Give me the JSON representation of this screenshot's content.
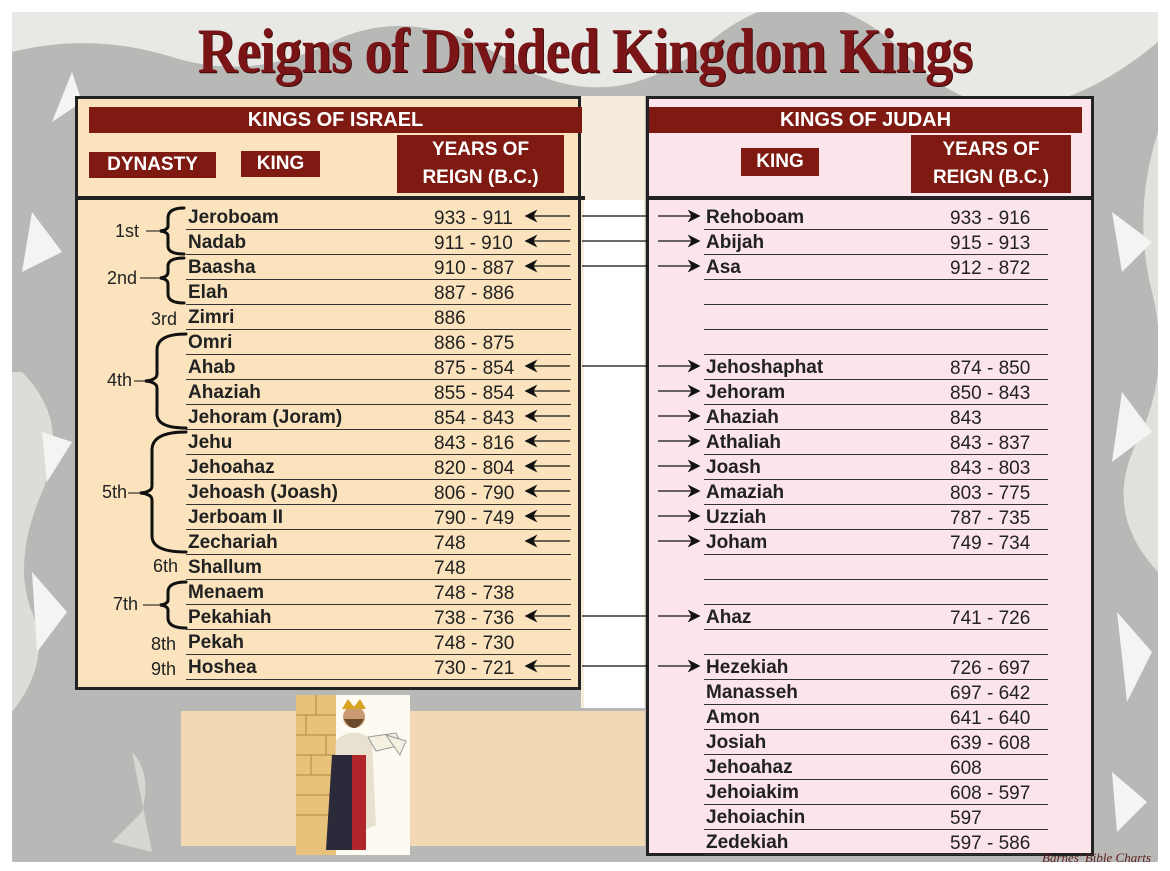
{
  "title": "Reigns of Divided Kingdom Kings",
  "israel": {
    "header": "KINGS OF ISRAEL",
    "col_dynasty": "DYNASTY",
    "col_king": "KING",
    "col_years_1": "YEARS OF",
    "col_years_2": "REIGN (B.C.)",
    "rows": [
      {
        "name": "Jeroboam",
        "years": "933 - 911"
      },
      {
        "name": "Nadab",
        "years": "911 - 910"
      },
      {
        "name": "Baasha",
        "years": "910 - 887"
      },
      {
        "name": "Elah",
        "years": "887 - 886"
      },
      {
        "name": "Zimri",
        "years": "886"
      },
      {
        "name": "Omri",
        "years": "886 - 875"
      },
      {
        "name": "Ahab",
        "years": "875 - 854"
      },
      {
        "name": "Ahaziah",
        "years": "855 - 854"
      },
      {
        "name": "Jehoram  (Joram)",
        "years": "854 - 843"
      },
      {
        "name": "Jehu",
        "years": "843 - 816"
      },
      {
        "name": "Jehoahaz",
        "years": "820 - 804"
      },
      {
        "name": "Jehoash  (Joash)",
        "years": "806 - 790"
      },
      {
        "name": "Jerboam II",
        "years": "790 - 749"
      },
      {
        "name": "Zechariah",
        "years": "748"
      },
      {
        "name": "Shallum",
        "years": "748"
      },
      {
        "name": "Menaem",
        "years": "748 - 738"
      },
      {
        "name": "Pekahiah",
        "years": "738 - 736"
      },
      {
        "name": "Pekah",
        "years": "748 - 730"
      },
      {
        "name": "Hoshea",
        "years": "730 - 721"
      }
    ],
    "dynasties": [
      "1st",
      "2nd",
      "3rd",
      "4th",
      "5th",
      "6th",
      "7th",
      "8th",
      "9th"
    ]
  },
  "judah": {
    "header": "KINGS OF JUDAH",
    "col_king": "KING",
    "col_years_1": "YEARS OF",
    "col_years_2": "REIGN (B.C.)",
    "rows": [
      {
        "name": "Rehoboam",
        "years": "933 - 916"
      },
      {
        "name": "Abijah",
        "years": "915 - 913"
      },
      {
        "name": "Asa",
        "years": "912 - 872"
      },
      {
        "name": "",
        "years": ""
      },
      {
        "name": "",
        "years": ""
      },
      {
        "name": "",
        "years": ""
      },
      {
        "name": "Jehoshaphat",
        "years": "874 - 850"
      },
      {
        "name": "Jehoram",
        "years": "850 - 843"
      },
      {
        "name": "Ahaziah",
        "years": "843"
      },
      {
        "name": "Athaliah",
        "years": "843 - 837"
      },
      {
        "name": "Joash",
        "years": "843 - 803"
      },
      {
        "name": "Amaziah",
        "years": "803 - 775"
      },
      {
        "name": "Uzziah",
        "years": "787 - 735"
      },
      {
        "name": "Joham",
        "years": "749 - 734"
      },
      {
        "name": "",
        "years": ""
      },
      {
        "name": "",
        "years": ""
      },
      {
        "name": "Ahaz",
        "years": "741 - 726"
      },
      {
        "name": "",
        "years": ""
      },
      {
        "name": "Hezekiah",
        "years": "726 - 697"
      },
      {
        "name": "Manasseh",
        "years": "697 - 642"
      },
      {
        "name": "Amon",
        "years": "641 - 640"
      },
      {
        "name": "Josiah",
        "years": "639 - 608"
      },
      {
        "name": "Jehoahaz",
        "years": "608"
      },
      {
        "name": "Jehoiakim",
        "years": "608 - 597"
      },
      {
        "name": "Jehoiachin",
        "years": "597"
      },
      {
        "name": "Zedekiah",
        "years": "597 - 586"
      }
    ]
  },
  "credit": "Barnes' Bible Charts"
}
